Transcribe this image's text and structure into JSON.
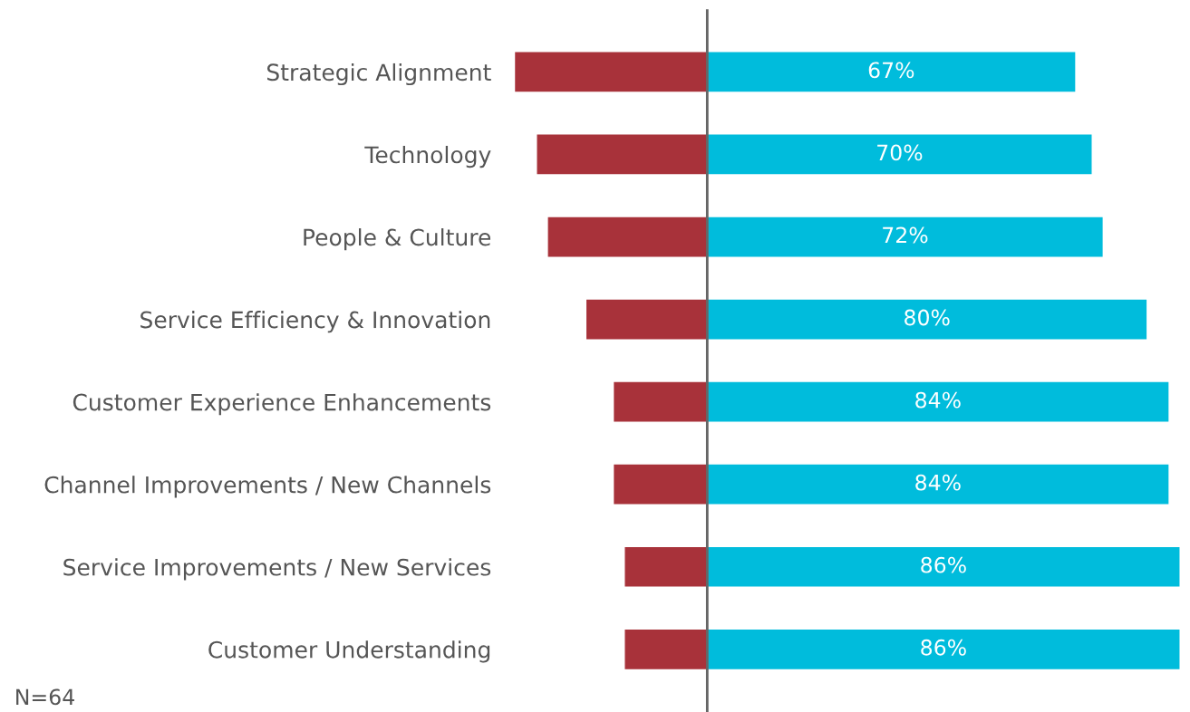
{
  "chart_data": {
    "type": "bar",
    "orientation": "horizontal",
    "stacked": true,
    "categories": [
      "Strategic Alignment",
      "Technology",
      "People & Culture",
      "Service Efficiency & Innovation",
      "Customer Experience Enhancements",
      "Channel Improvements / New Channels",
      "Service Improvements / New Services",
      "Customer Understanding"
    ],
    "series": [
      {
        "color": "#a8323a",
        "values": [
          -35,
          -31,
          -29,
          -22,
          -17,
          -17,
          -15,
          -15
        ]
      },
      {
        "color": "#00bcdc",
        "values": [
          67,
          70,
          72,
          80,
          84,
          84,
          86,
          86
        ],
        "value_labels": [
          "67%",
          "70%",
          "72%",
          "80%",
          "84%",
          "84%",
          "86%",
          "86%"
        ]
      }
    ],
    "tick_labels": "y",
    "grid": false,
    "legend": false,
    "ref_lines": [
      {
        "axis": "x",
        "value": 0,
        "color": "#666666"
      }
    ],
    "annotations": [
      "N=64"
    ]
  }
}
